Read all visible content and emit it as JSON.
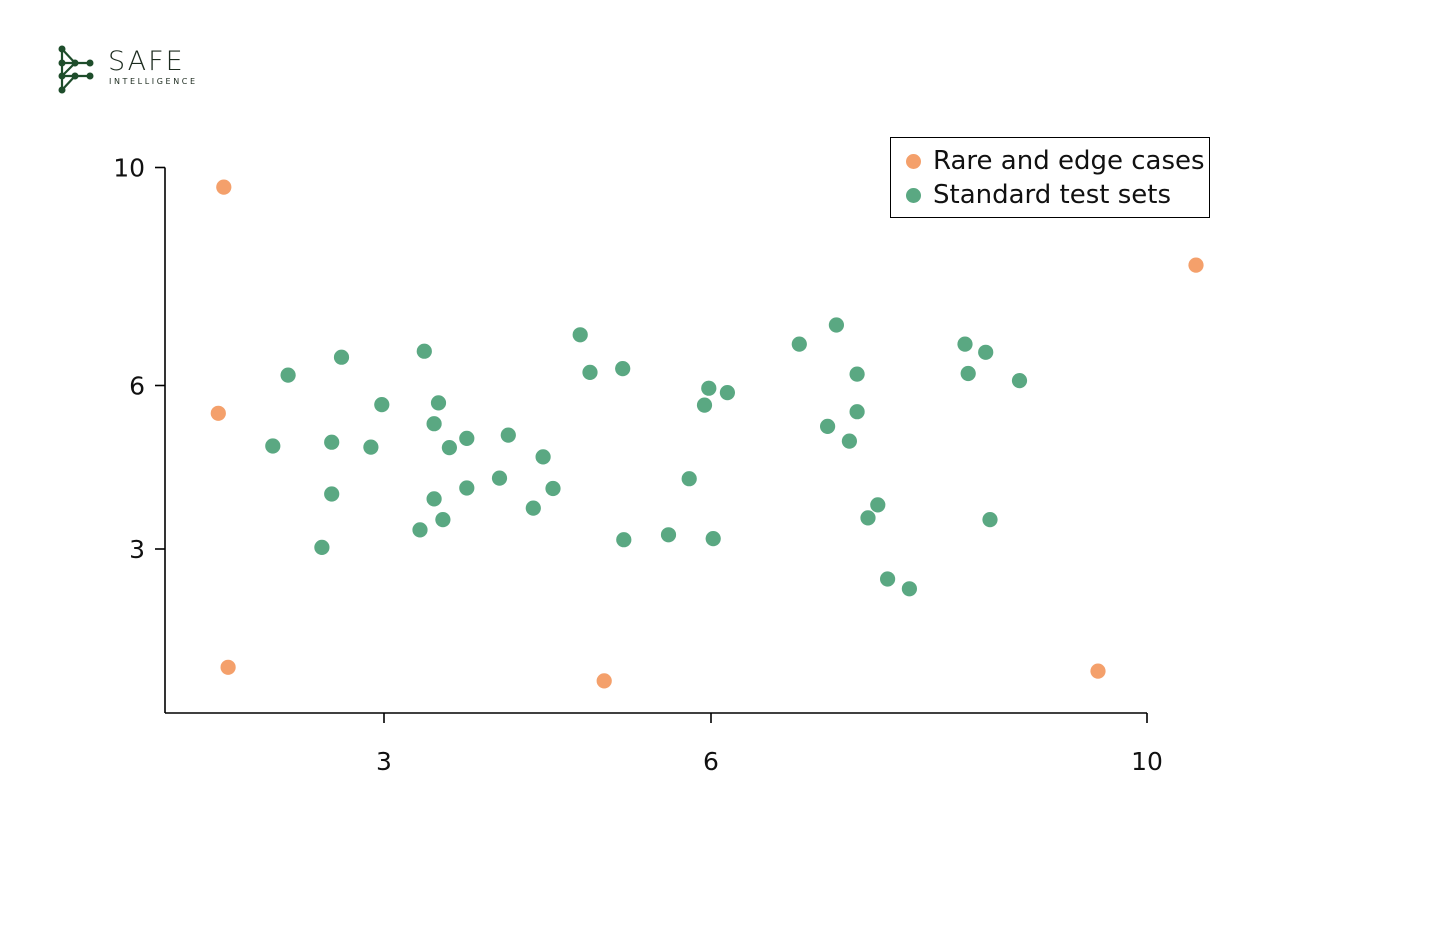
{
  "logo": {
    "icon": "network-node-icon",
    "word": "SAFE",
    "sub": "INTELLIGENCE",
    "color": "#1e4d2b"
  },
  "chart_data": {
    "type": "scatter",
    "title": "",
    "xlabel": "",
    "ylabel": "",
    "xlim": [
      1,
      10
    ],
    "ylim": [
      0,
      10
    ],
    "x_ticks": [
      3,
      6,
      10
    ],
    "y_ticks": [
      3,
      6,
      10
    ],
    "grid": false,
    "legend_placement": "top-right",
    "series": [
      {
        "name": "Rare and edge cases",
        "color": "#f4a06b",
        "points": [
          [
            1.53,
            9.64
          ],
          [
            1.48,
            5.49
          ],
          [
            1.57,
            0.83
          ],
          [
            5.02,
            0.58
          ],
          [
            9.55,
            0.76
          ],
          [
            10.45,
            8.21
          ]
        ]
      },
      {
        "name": "Standard test sets",
        "color": "#5aa882",
        "points": [
          [
            2.12,
            6.19
          ],
          [
            1.98,
            4.89
          ],
          [
            2.52,
            4.96
          ],
          [
            2.52,
            4.01
          ],
          [
            2.61,
            6.52
          ],
          [
            2.43,
            3.03
          ],
          [
            2.88,
            4.87
          ],
          [
            2.98,
            5.65
          ],
          [
            3.37,
            6.63
          ],
          [
            3.5,
            5.68
          ],
          [
            3.46,
            5.3
          ],
          [
            3.6,
            4.86
          ],
          [
            3.76,
            5.03
          ],
          [
            3.76,
            4.12
          ],
          [
            3.46,
            3.92
          ],
          [
            3.54,
            3.54
          ],
          [
            3.33,
            3.35
          ],
          [
            4.14,
            5.09
          ],
          [
            4.06,
            4.3
          ],
          [
            4.46,
            4.69
          ],
          [
            4.55,
            4.11
          ],
          [
            4.37,
            3.75
          ],
          [
            4.8,
            6.93
          ],
          [
            4.89,
            6.24
          ],
          [
            5.19,
            6.31
          ],
          [
            5.2,
            3.17
          ],
          [
            5.61,
            3.26
          ],
          [
            5.8,
            4.29
          ],
          [
            5.98,
            5.95
          ],
          [
            5.94,
            5.64
          ],
          [
            6.15,
            5.87
          ],
          [
            6.02,
            3.19
          ],
          [
            6.81,
            6.76
          ],
          [
            7.15,
            7.11
          ],
          [
            7.34,
            6.21
          ],
          [
            7.34,
            5.52
          ],
          [
            7.07,
            5.25
          ],
          [
            7.27,
            4.98
          ],
          [
            7.53,
            3.81
          ],
          [
            7.44,
            3.57
          ],
          [
            7.62,
            2.45
          ],
          [
            7.82,
            2.27
          ],
          [
            8.33,
            6.76
          ],
          [
            8.52,
            6.61
          ],
          [
            8.36,
            6.22
          ],
          [
            8.83,
            6.09
          ],
          [
            8.56,
            3.54
          ]
        ]
      }
    ]
  }
}
